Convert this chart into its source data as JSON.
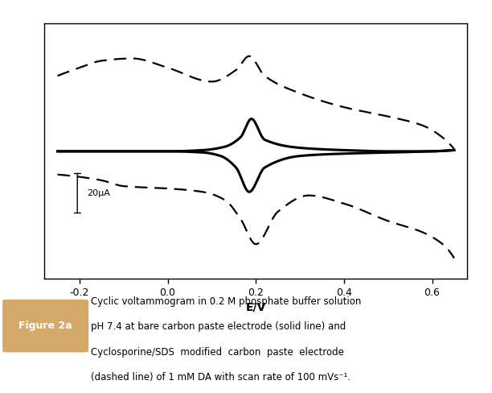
{
  "xlim": [
    -0.28,
    0.68
  ],
  "xticks": [
    -0.2,
    0.0,
    0.2,
    0.4,
    0.6
  ],
  "xlabel": "E/V",
  "scalebar_label": "20μA",
  "fig_label": "Figure 2a",
  "caption_line1": "Cyclic voltammogram in 0.2 M phosphate buffer solution",
  "caption_line2": "pH 7.4 at bare carbon paste electrode (solid line) and",
  "caption_line3": "Cyclosporine/SDS  modified  carbon  paste  electrode",
  "caption_line4": "(dashed line) of 1 mM DA with scan rate of 100 mVs⁻¹.",
  "background_color": "#ffffff",
  "border_color": "#c8a060",
  "label_box_color": "#d4a96a",
  "label_text_color": "#ffffff",
  "text_color": "#000000",
  "solid_upper_x": [
    -0.25,
    -0.2,
    -0.1,
    0.0,
    0.08,
    0.13,
    0.165,
    0.19,
    0.22,
    0.3,
    0.4,
    0.5,
    0.6,
    0.65
  ],
  "solid_upper_y": [
    0.0,
    0.0,
    0.0,
    0.0,
    0.01,
    0.04,
    0.12,
    0.28,
    0.1,
    0.03,
    0.01,
    0.0,
    0.0,
    0.01
  ],
  "solid_lower_x": [
    -0.25,
    -0.2,
    -0.1,
    0.0,
    0.08,
    0.12,
    0.155,
    0.185,
    0.22,
    0.3,
    0.4,
    0.5,
    0.6,
    0.65
  ],
  "solid_lower_y": [
    0.0,
    0.0,
    0.0,
    0.0,
    -0.01,
    -0.04,
    -0.14,
    -0.35,
    -0.14,
    -0.04,
    -0.02,
    -0.01,
    0.0,
    0.01
  ],
  "dashed_upper_x": [
    -0.25,
    -0.2,
    -0.15,
    -0.08,
    0.0,
    0.1,
    0.155,
    0.185,
    0.22,
    0.3,
    0.4,
    0.5,
    0.58,
    0.63,
    0.65
  ],
  "dashed_upper_y": [
    0.65,
    0.72,
    0.78,
    0.8,
    0.72,
    0.6,
    0.7,
    0.82,
    0.65,
    0.5,
    0.38,
    0.3,
    0.22,
    0.1,
    0.02
  ],
  "dashed_lower_x": [
    -0.25,
    -0.2,
    -0.15,
    -0.1,
    0.0,
    0.08,
    0.13,
    0.165,
    0.2,
    0.25,
    0.32,
    0.4,
    0.5,
    0.58,
    0.63,
    0.65
  ],
  "dashed_lower_y": [
    -0.2,
    -0.22,
    -0.25,
    -0.3,
    -0.32,
    -0.35,
    -0.42,
    -0.58,
    -0.8,
    -0.52,
    -0.38,
    -0.45,
    -0.6,
    -0.7,
    -0.82,
    -0.92
  ]
}
